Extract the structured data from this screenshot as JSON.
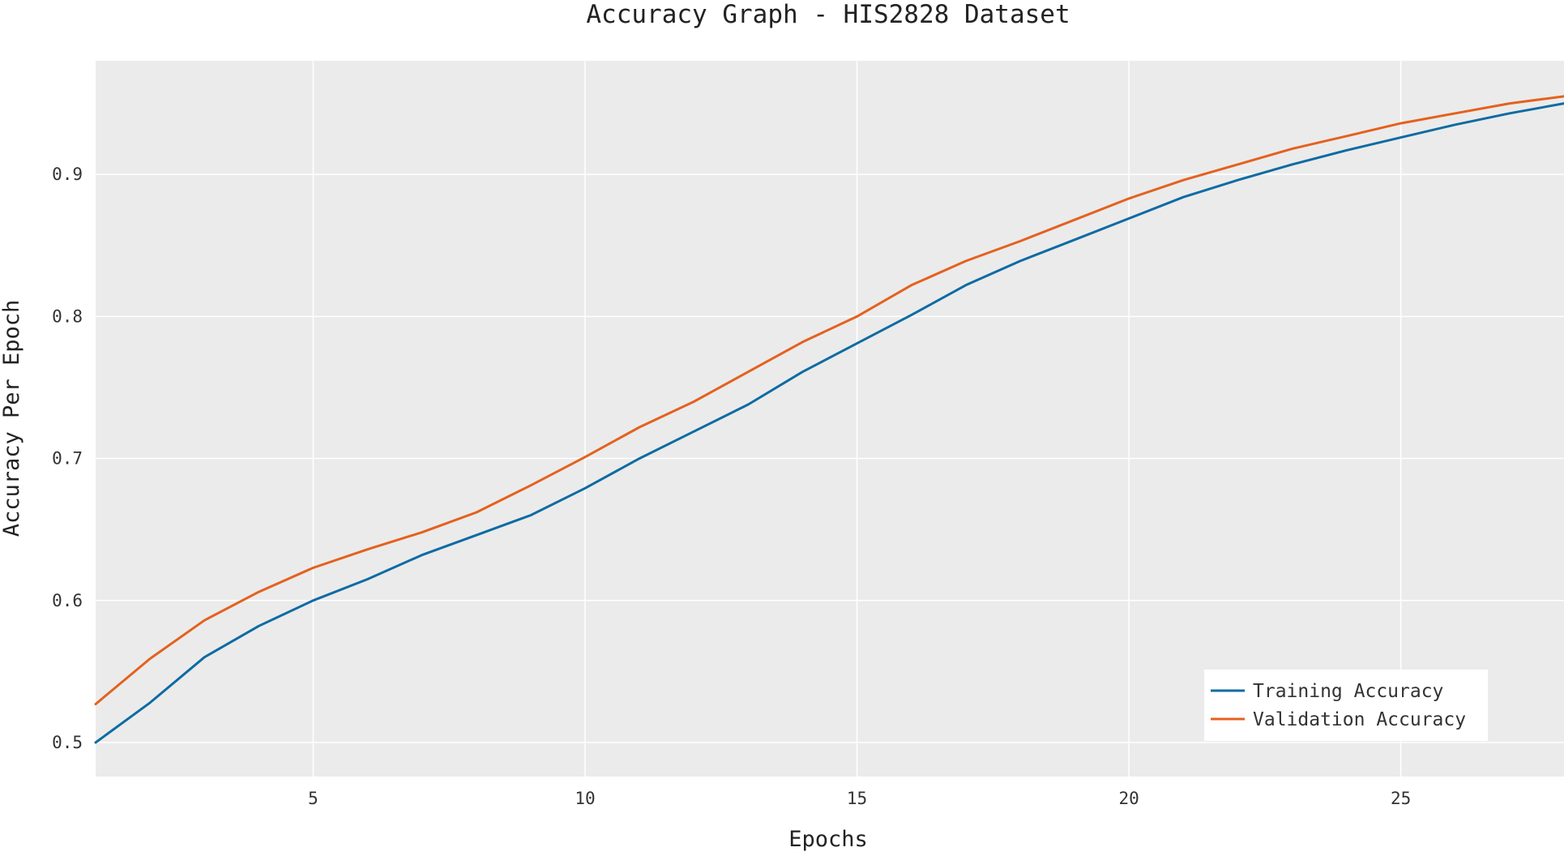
{
  "chart_data": {
    "type": "line",
    "title": "Accuracy Graph - HIS2828 Dataset",
    "xlabel": "Epochs",
    "ylabel": "Accuracy Per Epoch",
    "xlim": [
      1,
      28
    ],
    "ylim": [
      0.476,
      0.98
    ],
    "grid": true,
    "legend_position": "bottom-right",
    "background_color": "#ebebeb",
    "x_ticks": [
      5,
      10,
      15,
      20,
      25
    ],
    "y_ticks": [
      0.5,
      0.6,
      0.7,
      0.8,
      0.9
    ],
    "x": [
      1,
      2,
      3,
      4,
      5,
      6,
      7,
      8,
      9,
      10,
      11,
      12,
      13,
      14,
      15,
      16,
      17,
      18,
      19,
      20,
      21,
      22,
      23,
      24,
      25,
      26,
      27,
      28
    ],
    "series": [
      {
        "name": "Training Accuracy",
        "color": "#0d6ba3",
        "values": [
          0.5,
          0.528,
          0.56,
          0.582,
          0.6,
          0.615,
          0.632,
          0.646,
          0.66,
          0.679,
          0.7,
          0.719,
          0.738,
          0.761,
          0.781,
          0.801,
          0.822,
          0.839,
          0.854,
          0.869,
          0.884,
          0.896,
          0.907,
          0.917,
          0.926,
          0.935,
          0.943,
          0.95
        ]
      },
      {
        "name": "Validation Accuracy",
        "color": "#e4611e",
        "values": [
          0.527,
          0.559,
          0.586,
          0.606,
          0.623,
          0.636,
          0.648,
          0.662,
          0.681,
          0.701,
          0.722,
          0.74,
          0.761,
          0.782,
          0.8,
          0.822,
          0.839,
          0.853,
          0.868,
          0.883,
          0.896,
          0.907,
          0.918,
          0.927,
          0.936,
          0.943,
          0.95,
          0.955
        ]
      }
    ]
  }
}
